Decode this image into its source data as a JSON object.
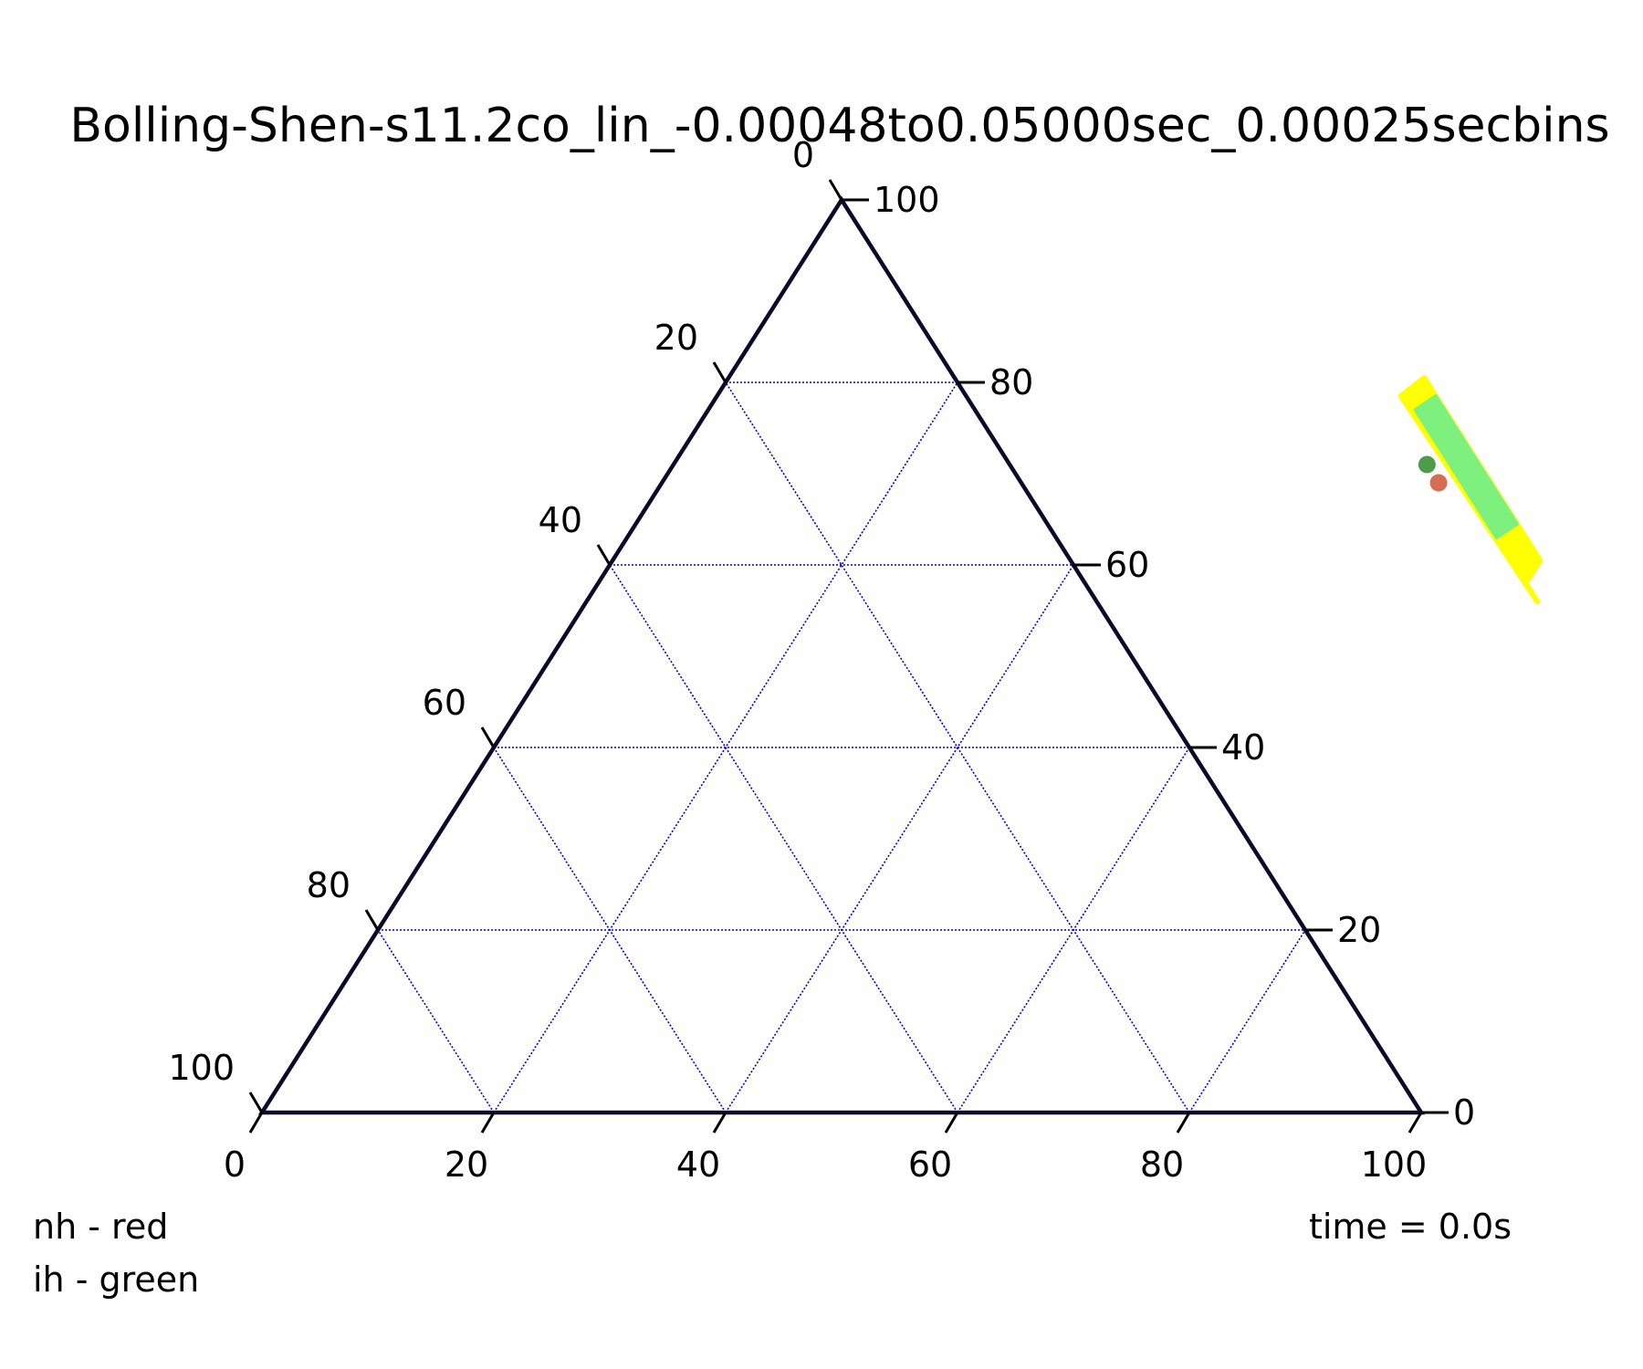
{
  "chart_data": {
    "type": "scatter",
    "subtype": "ternary",
    "title": "Bolling-Shen-s11.2co_lin_-0.00048to0.05000sec_0.00025secbins",
    "scale": [
      0,
      100
    ],
    "grid": true,
    "grid_color": "#0000cc",
    "axes": {
      "bottom": {
        "ticks": [
          "0",
          "20",
          "40",
          "60",
          "80",
          "100"
        ]
      },
      "left": {
        "ticks": [
          "0",
          "20",
          "40",
          "60",
          "80",
          "100"
        ]
      },
      "right": {
        "ticks": [
          "100",
          "80",
          "60",
          "40",
          "20",
          "0"
        ]
      }
    },
    "density_colors": {
      "low": "#ffff00",
      "high": "#7df07d"
    },
    "density_region": {
      "low_band": [
        [
          59,
          78.5
        ],
        [
          60,
          80.5
        ],
        [
          80,
          60.5
        ],
        [
          80,
          58
        ],
        [
          82,
          56
        ]
      ],
      "high_band": [
        [
          61,
          77
        ],
        [
          62,
          78.5
        ],
        [
          76,
          64.5
        ],
        [
          75,
          63
        ]
      ]
    },
    "series": [
      {
        "color": "#cc5533",
        "points": [
          [
            67,
            69
          ]
        ]
      },
      {
        "color": "#2e8b2e",
        "points": [
          [
            65,
            71
          ]
        ]
      }
    ],
    "annotations": {
      "nh_label": "nh - red",
      "ih_label": "ih - green",
      "time_label": "time = 0.0s"
    }
  }
}
